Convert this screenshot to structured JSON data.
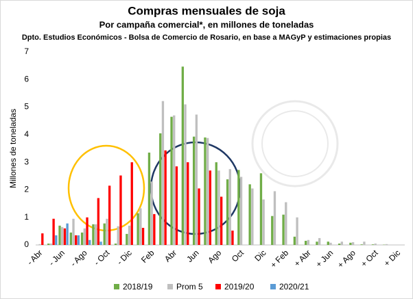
{
  "chart_data": {
    "type": "bar",
    "title": "Compras mensuales de soja",
    "subtitle": "Por campaña comercial*, en millones de toneladas",
    "note": "Dpto. Estudios Económicos - Bolsa de Comercio de Rosario, en base a MAGyP y estimaciones propias",
    "y_label": "Millones de toneladas",
    "categories": [
      "- Abr",
      null,
      "- Jun",
      null,
      "- Ago",
      null,
      "- Oct",
      null,
      "- Dic",
      null,
      "Feb",
      null,
      "Abr",
      null,
      "Jun",
      null,
      "Ago",
      null,
      "Oct",
      null,
      "Dic",
      null,
      "+ Feb",
      null,
      "+ Abr",
      null,
      "+ Jun",
      null,
      "+ Ago",
      null,
      "+ Oct",
      null,
      "+ Dic"
    ],
    "series": [
      {
        "name": "2018/19",
        "color": "#70ad47",
        "values": [
          0,
          0.05,
          0.7,
          0.45,
          0.45,
          0.75,
          0.78,
          0.05,
          0.4,
          1.15,
          3.35,
          4.05,
          4.65,
          6.47,
          3.93,
          3.9,
          3.0,
          2.38,
          2.72,
          2.2,
          2.6,
          1.05,
          1.1,
          0.3,
          0.15,
          0.12,
          0.12,
          0.05,
          0.08,
          0.02,
          0.02,
          0.01,
          0
        ]
      },
      {
        "name": "Prom 5",
        "color": "#bfbfbf",
        "values": [
          0.03,
          0.05,
          0.65,
          0.95,
          0.6,
          0.75,
          0.95,
          0.68,
          0.7,
          1.33,
          2.3,
          5.22,
          4.7,
          5.1,
          4.73,
          3.88,
          2.7,
          2.75,
          2.47,
          2.05,
          1.65,
          1.95,
          1.55,
          1.0,
          0.18,
          0.25,
          0.08,
          0.12,
          0.1,
          0.12,
          0.05,
          0.03,
          0.01
        ]
      },
      {
        "name": "2019/20",
        "color": "#ff0000",
        "values": [
          0.42,
          0.95,
          0.6,
          0.35,
          1.0,
          1.7,
          2.15,
          2.52,
          3.0,
          0.62,
          1.12,
          3.43,
          2.85,
          3.0,
          2.05,
          2.7,
          1.75,
          0.52,
          null,
          null,
          null,
          null,
          null,
          null,
          null,
          null,
          null,
          null,
          null,
          null,
          null,
          null,
          null
        ]
      },
      {
        "name": "2020/21",
        "color": "#5b9bd5",
        "values": [
          0,
          0.35,
          0.78,
          0.35,
          0.18,
          0.12,
          null,
          null,
          null,
          null,
          null,
          null,
          null,
          null,
          null,
          null,
          null,
          null,
          null,
          null,
          null,
          null,
          null,
          null,
          null,
          null,
          null,
          null,
          null,
          null,
          null,
          null,
          null
        ]
      }
    ],
    "ylim": [
      0,
      7
    ],
    "yticks": [
      0,
      1,
      2,
      3,
      4,
      5,
      6,
      7
    ],
    "grid": false
  }
}
